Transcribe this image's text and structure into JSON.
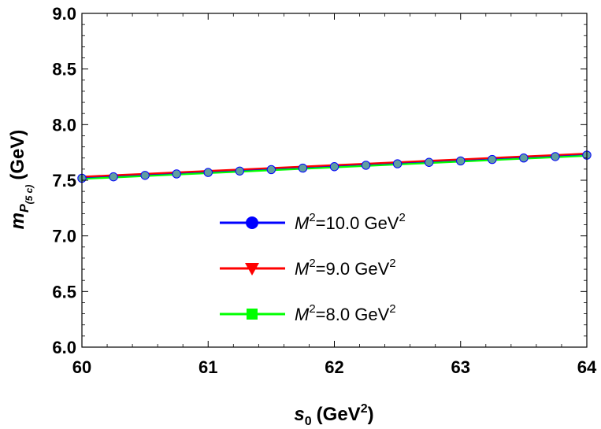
{
  "chart_data": {
    "type": "line",
    "xlabel": {
      "base": "s",
      "sub": "0",
      "units": "(GeV",
      "units_sup": "2",
      "close": ")"
    },
    "ylabel": {
      "base": "m",
      "sub": "P",
      "subsub": "(5 c)",
      "units": "(GeV)"
    },
    "xlim": [
      60,
      64
    ],
    "ylim": [
      6.0,
      9.0
    ],
    "xticks": [
      60,
      61,
      62,
      63,
      64
    ],
    "xtick_labels": [
      "60",
      "61",
      "62",
      "63",
      "64"
    ],
    "yticks": [
      6.0,
      6.5,
      7.0,
      7.5,
      8.0,
      8.5,
      9.0
    ],
    "ytick_labels": [
      "6.0",
      "6.5",
      "7.0",
      "7.5",
      "8.0",
      "8.5",
      "9.0"
    ],
    "x": [
      60,
      60.25,
      60.5,
      60.75,
      61,
      61.25,
      61.5,
      61.75,
      62,
      62.25,
      62.5,
      62.75,
      63,
      63.25,
      63.5,
      63.75,
      64
    ],
    "series": [
      {
        "name": "M²=10.0 GeV²",
        "label": {
          "base": "M",
          "sup": "2",
          "rest": "=10.0 GeV",
          "sup2": "2"
        },
        "color": "#0000ff",
        "marker": "circle",
        "values": [
          7.525,
          7.538,
          7.551,
          7.564,
          7.578,
          7.591,
          7.604,
          7.617,
          7.63,
          7.643,
          7.656,
          7.669,
          7.682,
          7.695,
          7.708,
          7.721,
          7.734
        ]
      },
      {
        "name": "M²=9.0 GeV²",
        "label": {
          "base": "M",
          "sup": "2",
          "rest": "=9.0 GeV",
          "sup2": "2"
        },
        "color": "#ff0000",
        "marker": "triangle-down",
        "values": [
          7.532,
          7.545,
          7.558,
          7.571,
          7.584,
          7.597,
          7.61,
          7.623,
          7.636,
          7.649,
          7.662,
          7.675,
          7.688,
          7.701,
          7.714,
          7.727,
          7.74
        ]
      },
      {
        "name": "M²=8.0 GeV²",
        "label": {
          "base": "M",
          "sup": "2",
          "rest": "=8.0 GeV",
          "sup2": "2"
        },
        "color": "#00ff00",
        "marker": "square",
        "values": [
          7.512,
          7.525,
          7.538,
          7.551,
          7.564,
          7.577,
          7.59,
          7.603,
          7.616,
          7.629,
          7.642,
          7.655,
          7.668,
          7.681,
          7.694,
          7.707,
          7.72
        ]
      }
    ],
    "marker_fill": "#5f9ea0",
    "legend_placement": "center-right",
    "grid": false
  }
}
